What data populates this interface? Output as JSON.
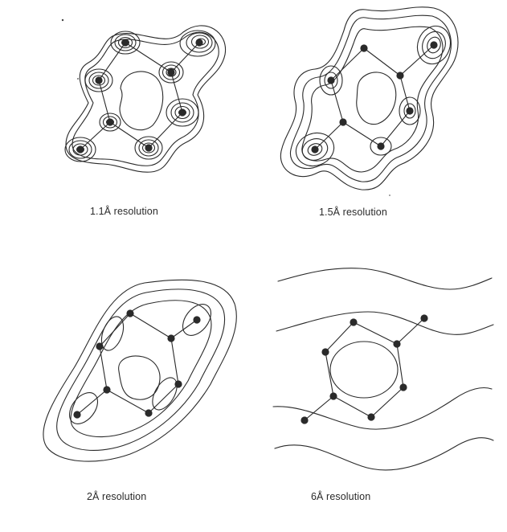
{
  "figure": {
    "panels": [
      {
        "caption": "1.1Å resolution"
      },
      {
        "caption": "1.5Å resolution"
      },
      {
        "caption": "2Å resolution"
      },
      {
        "caption": "6Å resolution"
      }
    ],
    "colors": {
      "line": "#2a2a2a",
      "atom": "#2a2a2a",
      "background": "#ffffff"
    }
  }
}
